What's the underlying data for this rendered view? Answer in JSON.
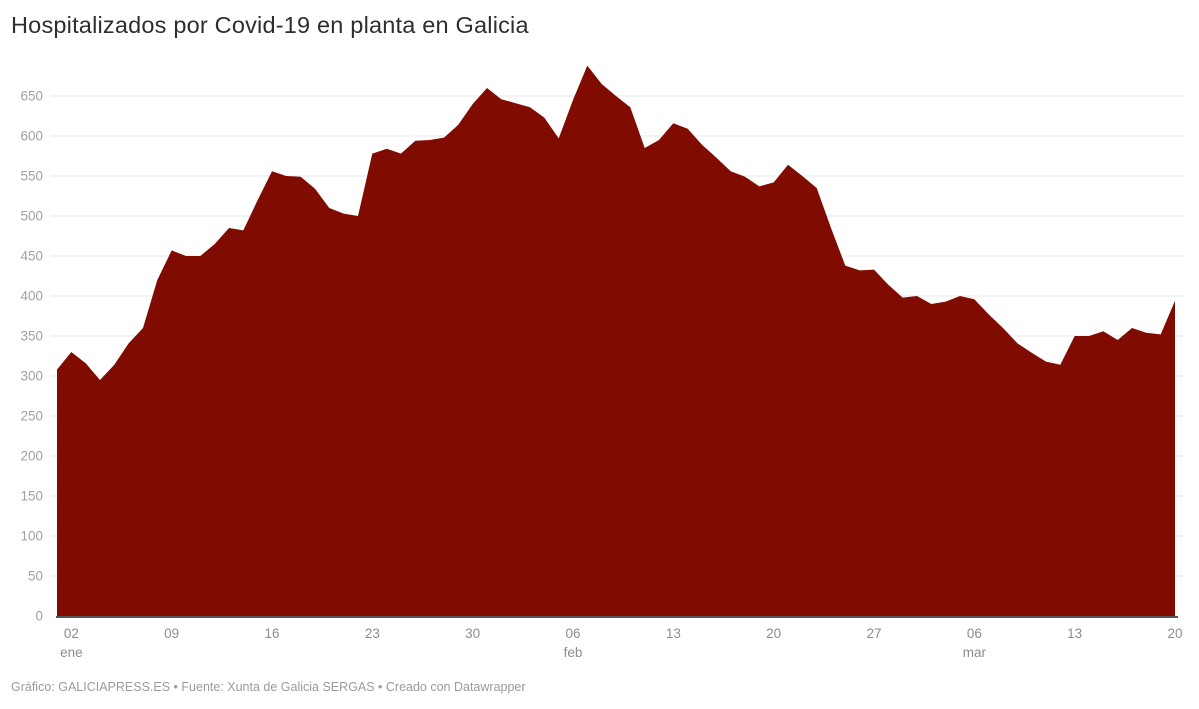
{
  "title": "Hospitalizados por Covid-19 en planta en Galicia",
  "footer": "Gráfico: GALICIAPRESS.ES • Fuente: Xunta de Galicia SERGAS • Creado con Datawrapper",
  "style": {
    "area_color": "#800b00",
    "grid_color": "#e7e7e7",
    "baseline_color": "#1f1f1f",
    "y_tick_label_color": "#a0a0a0",
    "x_tick_label_color": "#8c8c8c",
    "title_color": "#2e2e2e",
    "footer_color": "#9b9b9b",
    "background": "#ffffff"
  },
  "chart_data": {
    "type": "area",
    "title": "Hospitalizados por Covid-19 en planta en Galicia",
    "xlabel": "",
    "ylabel": "",
    "ylim": [
      0,
      700
    ],
    "grid": "horizontal",
    "legend": "none",
    "y_ticks": [
      0,
      50,
      100,
      150,
      200,
      250,
      300,
      350,
      400,
      450,
      500,
      550,
      600,
      650
    ],
    "x_ticks": [
      {
        "index": 1,
        "day": "02",
        "month": "ene"
      },
      {
        "index": 8,
        "day": "09",
        "month": ""
      },
      {
        "index": 15,
        "day": "16",
        "month": ""
      },
      {
        "index": 22,
        "day": "23",
        "month": ""
      },
      {
        "index": 29,
        "day": "30",
        "month": ""
      },
      {
        "index": 36,
        "day": "06",
        "month": "feb"
      },
      {
        "index": 43,
        "day": "13",
        "month": ""
      },
      {
        "index": 50,
        "day": "20",
        "month": ""
      },
      {
        "index": 57,
        "day": "27",
        "month": ""
      },
      {
        "index": 64,
        "day": "06",
        "month": "mar"
      },
      {
        "index": 71,
        "day": "13",
        "month": ""
      },
      {
        "index": 78,
        "day": "20",
        "month": ""
      }
    ],
    "x": [
      "01 ene",
      "02 ene",
      "03 ene",
      "04 ene",
      "05 ene",
      "06 ene",
      "07 ene",
      "08 ene",
      "09 ene",
      "10 ene",
      "11 ene",
      "12 ene",
      "13 ene",
      "14 ene",
      "15 ene",
      "16 ene",
      "17 ene",
      "18 ene",
      "19 ene",
      "20 ene",
      "21 ene",
      "22 ene",
      "23 ene",
      "24 ene",
      "25 ene",
      "26 ene",
      "27 ene",
      "28 ene",
      "29 ene",
      "30 ene",
      "31 ene",
      "01 feb",
      "02 feb",
      "03 feb",
      "04 feb",
      "05 feb",
      "06 feb",
      "07 feb",
      "08 feb",
      "09 feb",
      "10 feb",
      "11 feb",
      "12 feb",
      "13 feb",
      "14 feb",
      "15 feb",
      "16 feb",
      "17 feb",
      "18 feb",
      "19 feb",
      "20 feb",
      "21 feb",
      "22 feb",
      "23 feb",
      "24 feb",
      "25 feb",
      "26 feb",
      "27 feb",
      "28 feb",
      "01 mar",
      "02 mar",
      "03 mar",
      "04 mar",
      "05 mar",
      "06 mar",
      "07 mar",
      "08 mar",
      "09 mar",
      "10 mar",
      "11 mar",
      "12 mar",
      "13 mar",
      "14 mar",
      "15 mar",
      "16 mar",
      "17 mar",
      "18 mar",
      "19 mar",
      "20 mar"
    ],
    "values": [
      308,
      330,
      316,
      295,
      314,
      341,
      360,
      420,
      457,
      450,
      450,
      465,
      485,
      482,
      520,
      556,
      550,
      549,
      534,
      510,
      503,
      500,
      578,
      584,
      578,
      594,
      595,
      598,
      614,
      640,
      660,
      646,
      641,
      636,
      623,
      597,
      645,
      688,
      665,
      650,
      636,
      585,
      595,
      616,
      609,
      589,
      573,
      556,
      549,
      537,
      542,
      564,
      550,
      535,
      485,
      438,
      432,
      433,
      414,
      398,
      400,
      390,
      393,
      400,
      396,
      377,
      360,
      341,
      329,
      318,
      314,
      350,
      350,
      356,
      345,
      360,
      354,
      352,
      394
    ]
  }
}
